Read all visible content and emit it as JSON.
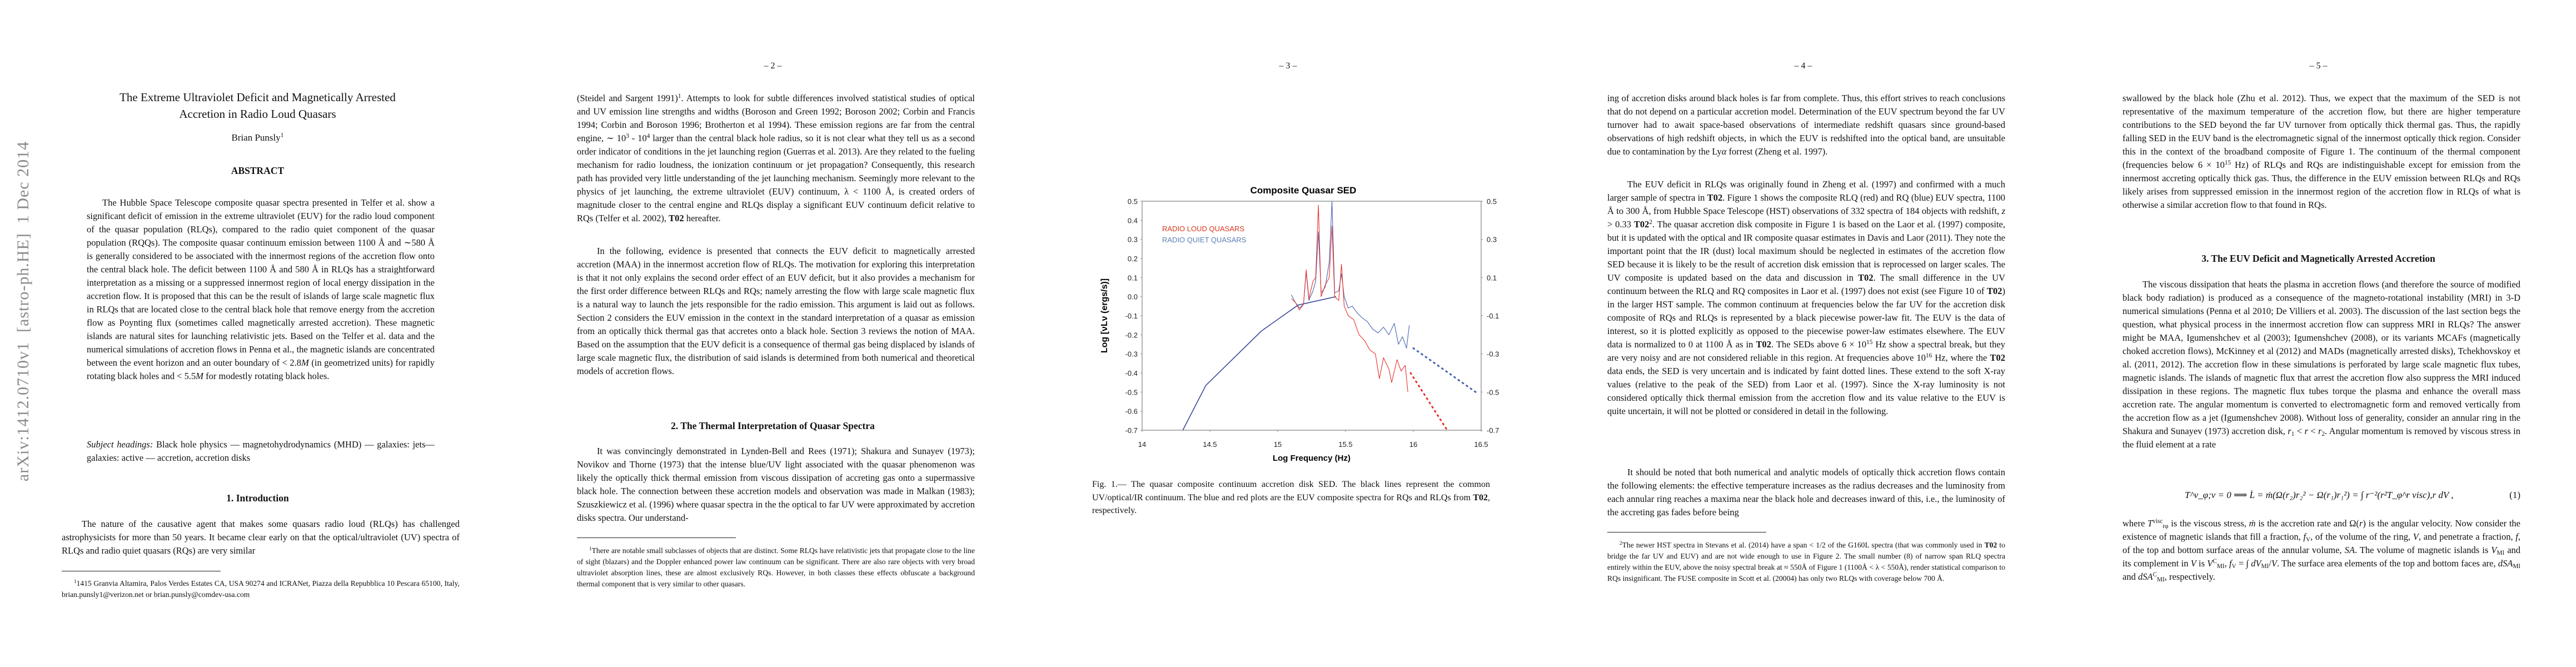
{
  "arxiv_stamp": "arXiv:1412.0710v1  [astro-ph.HE]  1 Dec 2014",
  "pages": [
    {
      "title_line1": "The Extreme Ultraviolet Deficit and Magnetically Arrested",
      "title_line2": "Accretion in Radio Loud Quasars",
      "author": [
        "Brian Punsly",
        {
          "sup": "1"
        }
      ],
      "abstract_heading": "ABSTRACT",
      "abstract": [
        "The Hubble Space Telescope composite quasar spectra presented in Telfer et al. show a significant deficit of emission in the extreme ultraviolet (EUV) for the radio loud component of the quasar population (RLQs), compared to the radio quiet component of the quasar population (RQQs). The composite quasar continuum emission between 1100 Å and ∼580 Å is generally considered to be associated with the innermost regions of the accretion flow onto the central black hole. The deficit between 1100 Å and 580 Å in RLQs has a straightforward interpretation as a missing or a suppressed innermost region of local energy dissipation in the accretion flow. It is proposed that this can be the result of islands of large scale magnetic flux in RLQs that are located close to the central black hole that remove energy from the accretion flow as Poynting flux (sometimes called magnetically arrested accretion). These magnetic islands are natural sites for launching relativistic jets. Based on the Telfer et al. data and the numerical simulations of accretion flows in Penna et al., the magnetic islands are concentrated between the event horizon and an outer boundary of < 2.8",
        {
          "i": "M"
        },
        " (in geometrized units) for rapidly rotating black holes and < 5.5",
        {
          "i": "M"
        },
        " for modestly rotating black holes."
      ],
      "subject_headings": [
        {
          "i": "Subject headings:"
        },
        " Black hole physics — magnetohydrodynamics (MHD) — galaxies: jets—galaxies: active — accretion, accretion disks"
      ],
      "section_heading": "1.   Introduction",
      "intro": [
        "The nature of the causative agent that makes some quasars radio loud (RLQs) has challenged astrophysicists for more than 50 years. It became clear early on that the optical/ultraviolet (UV) spectra of RLQs and radio quiet quasars (RQs) are very similar"
      ],
      "footnote": [
        {
          "sup": "1"
        },
        "1415 Granvia Altamira, Palos Verdes Estates CA, USA 90274 and ICRANet, Piazza della Repubblica 10 Pescara 65100, Italy, brian.punsly1@verizon.net or brian.punsly@comdev-usa.com"
      ]
    },
    {
      "page_number": "– 2 –",
      "para1": [
        "(Steidel and Sargent 1991)",
        {
          "sup": "1"
        },
        ". Attempts to look for subtle differences involved statistical studies of optical and UV emission line strengths and widths (Boroson and Green 1992; Boroson 2002; Corbin and Francis 1994; Corbin and Boroson 1996; Brotherton et al 1994). These emission regions are far from the central engine, ∼ 10",
        {
          "sup": "3"
        },
        " - 10",
        {
          "sup": "4"
        },
        " larger than the central black hole radius, so it is not clear what they tell us as a second order indicator of conditions in the jet launching region (Guerras et al. 2013). Are they related to the fueling mechanism for radio loudness, the ionization continuum or jet propagation? Consequently, this research path has provided very little understanding of the jet launching mechanism. Seemingly more relevant to the physics of jet launching, the extreme ultraviolet (EUV) continuum, λ < 1100 Å, is created orders of magnitude closer to the central engine and RLQs display a significant EUV continuum deficit relative to RQs (Telfer et al. 2002), ",
        {
          "b": "T02"
        },
        " hereafter."
      ],
      "para2": [
        "In the following, evidence is presented that connects the EUV deficit to magnetically arrested accretion (MAA) in the innermost accretion flow of RLQs. The motivation for exploring this interpretation is that it not only explains the second order effect of an EUV deficit, but it also provides a mechanism for the first order difference between RLQs and RQs; namely arresting the flow with large scale magnetic flux is a natural way to launch the jets responsible for the radio emission. This argument is laid out as follows. Section 2 considers the EUV emission in the context in the standard interpretation of a quasar as emission from an optically thick thermal gas that accretes onto a black hole. Section 3 reviews the notion of MAA. Based on the assumption that the EUV deficit is a consequence of thermal gas being displaced by islands of large scale magnetic flux, the distribution of said islands is determined from both numerical and theoretical models of accretion flows."
      ],
      "section_heading": "2.   The Thermal Interpretation of Quasar Spectra",
      "para3": [
        "It was convincingly demonstrated in Lynden-Bell and Rees (1971); Shakura and Sunayev (1973); Novikov and Thorne (1973) that the intense blue/UV light associated with the quasar phenomenon was likely the optically thick thermal emission from viscous dissipation of accreting gas onto a supermassive black hole. The connection between these accretion models and observation was made in Malkan (1983); Szuszkiewicz et al. (1996) where quasar spectra in the the optical to far UV were approximated by accretion disks spectra. Our understand-"
      ],
      "footnote": [
        {
          "sup": "1"
        },
        "There are notable small subclasses of objects that are distinct. Some RLQs have relativistic jets that propagate close to the line of sight (blazars) and the Doppler enhanced power law continuum can be significant. There are also rare objects with very broad ultraviolet absorption lines, these are almost exclusively RQs. However, in both classes these effects obfuscate a background thermal component that is very similar to other quasars."
      ]
    },
    {
      "page_number": "– 3 –",
      "caption": [
        "Fig. 1.— The quasar composite continuum accretion disk SED. The black lines represent the common UV/optical/IR continuum. The blue and red plots are the EUV composite spectra for RQs and RLQs from ",
        {
          "b": "T02"
        },
        ", respectively."
      ]
    },
    {
      "page_number": "– 4 –",
      "para1": [
        "ing of accretion disks around black holes is far from complete. Thus, this effort strives to reach conclusions that do not depend on a particular accretion model. Determination of the EUV spectrum beyond the far UV turnover had to await space-based observations of intermediate redshift quasars since ground-based observations of high redshift objects, in which the EUV is redshifted into the optical band, are unsuitable due to contamination by the Ly",
        {
          "i": "α"
        },
        " forrest (Zheng et al. 1997)."
      ],
      "para2": [
        "The EUV deficit in RLQs was originally found in Zheng et al. (1997) and confirmed with a much larger sample of spectra in ",
        {
          "b": "T02"
        },
        ". Figure 1 shows the composite RLQ (red) and RQ (blue) EUV spectra, 1100 Å to 300 Å, from Hubble Space Telescope (HST) observations of 332 spectra of 184 objects with redshift, ",
        {
          "i": "z"
        },
        " > 0.33 ",
        {
          "b": "T02"
        },
        {
          "sup": "2"
        },
        ". The quasar accretion disk composite in Figure 1 is based on the Laor et al. (1997) composite, but it is updated with the optical and IR composite quasar estimates in Davis and Laor (2011). They note the important point that the IR (dust) local maximum should be neglected in estimates of the accretion flow SED because it is likely to be the result of accretion disk emission that is reprocessed on larger scales. The UV composite is updated based on the data and discussion in ",
        {
          "b": "T02"
        },
        ". The small difference in the UV continuum between the RLQ and RQ composites in Laor et al. (1997) does not exist (see Figure 10 of ",
        {
          "b": "T02"
        },
        ") in the larger HST sample. The common continuum at frequencies below the far UV for the accretion disk composite of RQs and RLQs is represented by a black piecewise power-law fit. The EUV is the data of interest, so it is plotted explicitly as opposed to the piecewise power-law estimates elsewhere. The EUV data is normalized to 0 at 1100 Å as in ",
        {
          "b": "T02"
        },
        ". The SEDs above 6 × 10",
        {
          "sup": "15"
        },
        " Hz show a spectral break, but they are very noisy and are not considered reliable in this region. At frequencies above 10",
        {
          "sup": "16"
        },
        " Hz, where the ",
        {
          "b": "T02"
        },
        " data ends, the SED is very uncertain and is indicated by faint dotted lines. These extend to the soft X-ray values (relative to the peak of the SED) from Laor et al. (1997). Since the X-ray luminosity is not considered optically thick thermal emission from the accretion flow and its value relative to the EUV is quite uncertain, it will not be plotted or considered in detail in the following."
      ],
      "para3": [
        "It should be noted that both numerical and analytic models of optically thick accretion flows contain the following elements: the effective temperature increases as the radius decreases and the luminosity from each annular ring reaches a maxima near the black hole and decreases inward of this, i.e., the luminosity of the accreting gas fades before being"
      ],
      "footnote": [
        {
          "sup": "2"
        },
        "The newer HST spectra in Stevans et al. (2014) have a span < 1/2 of the G160L spectra (that was commonly used in ",
        {
          "b": "T02"
        },
        " to bridge the far UV and EUV) and are not wide enough to use in Figure 2. The small number (8) of narrow span RLQ spectra entirely within the EUV, above the noisy spectral break at ≈ 550Å of Figure 1 (1100Å < λ < 550Å), render statistical comparison to RQs insignificant. The FUSE composite in Scott et al. (20004) has only two RLQs with coverage below 700 Å."
      ]
    },
    {
      "page_number": "– 5 –",
      "para1": [
        "swallowed by the black hole (Zhu et al. 2012). Thus, we expect that the maximum of the SED is not representative of the maximum temperature of the accretion flow, but there are higher temperature contributions to the SED beyond the far UV turnover from optically thick thermal gas. Thus, the rapidly falling SED in the EUV band is the electromagnetic signal of the innermost optically thick region. Consider this in the context of the broadband composite of Figure 1. The continuum of the thermal component (frequencies below 6 × 10",
        {
          "sup": "15"
        },
        " Hz) of RLQs and RQs are indistinguishable except for emission from the innermost accreting optically thick gas. Thus, the difference in the EUV emission between RLQs and RQs likely arises from suppressed emission in the innermost region of the accretion flow in RLQs of what is otherwise a similar accretion flow to that found in RQs."
      ],
      "section_heading": "3.   The EUV Deficit and Magnetically Arrested Accretion",
      "para2": [
        "The viscous dissipation that heats the plasma in accretion flows (and therefore the source of modified black body radiation) is produced as a consequence of the magneto-rotational instability (MRI) in 3-D numerical simulations (Penna et al 2010; De Villiers et al. 2003). The discussion of the last section begs the question, what physical process in the innermost accretion flow can suppress MRI in RLQs? The answer might be MAA, Igumenshchev et al (2003); Igumenshchev (2008), or its variants MCAFs (magnetically choked accretion flows), McKinney et al (2012) and MADs (magnetically arrested disks), Tchekhovskoy et al. (2011, 2012). The accretion flow in these simulations is perforated by large scale magnetic flux tubes, magnetic islands. The islands of magnetic flux that arrest the accretion flow also suppress the MRI induced dissipation in these regions. The magnetic flux tubes torque the plasma and enhance the overall mass accretion rate. The angular momentum is converted to electromagnetic form and removed vertically from the accretion flow as a jet (Igumenshchev 2008). Without loss of generality, consider an annular ring in the Shakura and Sunayev (1973) accretion disk, ",
        {
          "i": "r"
        },
        {
          "sub": "1"
        },
        " < ",
        {
          "i": "r"
        },
        " < ",
        {
          "i": "r"
        },
        {
          "sub": "2"
        },
        ". Angular momentum is removed by viscous stress in the fluid element at a rate"
      ],
      "equation": "T^ν_φ;ν = 0  ⟹  L̇ = ṁ(Ω(r₂)r₂² − Ω(r₁)r₁²) = ∫ r⁻²(r²T_φ^r visc),r dV ,",
      "equation_number": "(1)",
      "para3": [
        "where ",
        {
          "i": "T"
        },
        {
          "sup": "visc"
        },
        {
          "sub": "rφ"
        },
        " is the viscous stress, ",
        {
          "i": "ṁ"
        },
        " is the accretion rate and Ω(",
        {
          "i": "r"
        },
        ") is the angular velocity. Now consider the existence of magnetic islands that fill a fraction, ",
        {
          "i": "f"
        },
        {
          "sub": "V"
        },
        ", of the volume of the ring, ",
        {
          "i": "V"
        },
        ", and penetrate a fraction, ",
        {
          "i": "f"
        },
        ", of the top and bottom surface areas of the annular volume, ",
        {
          "i": "SA"
        },
        ". The volume of magnetic islands is ",
        {
          "i": "V"
        },
        {
          "sub": "MI"
        },
        " and its complement in ",
        {
          "i": "V"
        },
        " is ",
        {
          "i": "V"
        },
        {
          "sup": "C"
        },
        {
          "sub": "MI"
        },
        ", ",
        {
          "i": "f"
        },
        {
          "sub": "V"
        },
        " = ∫ ",
        {
          "i": "dV"
        },
        {
          "sub": "MI"
        },
        "/",
        {
          "i": "V"
        },
        ". The surface area elements of the top and bottom faces are, ",
        {
          "i": "dSA"
        },
        {
          "sub": "MI"
        },
        " and ",
        {
          "i": "dSA"
        },
        {
          "sup": "C"
        },
        {
          "sub": "MI"
        },
        ", respectively."
      ]
    }
  ],
  "chart_data": {
    "type": "line",
    "title": "Composite Quasar SED",
    "xlabel": "Log Frequency (Hz)",
    "ylabel": "Log [νLν (ergs/s)]",
    "xlim": [
      14,
      16.5
    ],
    "ylim": [
      -0.7,
      0.5
    ],
    "grid": false,
    "legend_placement": "top-left",
    "xticks": [
      "14",
      "14.5",
      "15",
      "15.5",
      "16",
      "16.5"
    ],
    "yticks_left": [
      "0.5",
      "0.4",
      "0.3",
      "0.2",
      "0.1",
      "0.0",
      "-0.1",
      "-0.2",
      "-0.3",
      "-0.4",
      "-0.5",
      "-0.6",
      "-0.7"
    ],
    "yticks_right": [
      "0.5",
      "0.3",
      "0.1",
      "-0.1",
      "-0.3",
      "-0.5",
      "-0.7"
    ],
    "colors": {
      "continuum": "#3b4a9a",
      "radio_quiet": "#4a63b0",
      "radio_loud": "#e8302a",
      "legend_loud": "#d9381e",
      "legend_quiet": "#5b7fb5",
      "axis": "#8a8a8a"
    },
    "series": [
      {
        "key": "continuum",
        "style": "solid",
        "x": [
          14.3,
          14.47,
          14.88,
          15.15,
          15.43
        ],
        "y": [
          -0.7,
          -0.465,
          -0.18,
          -0.044,
          0.0
        ]
      },
      {
        "key": "radio_quiet",
        "name": "RADIO QUIET QUASARS",
        "style": "solid",
        "x": [
          15.1,
          15.13,
          15.16,
          15.19,
          15.21,
          15.23,
          15.26,
          15.28,
          15.3,
          15.32,
          15.35,
          15.38,
          15.4,
          15.42,
          15.45,
          15.47,
          15.49,
          15.52,
          15.55,
          15.58,
          15.62,
          15.66,
          15.7,
          15.74,
          15.78,
          15.82,
          15.86,
          15.89,
          15.92,
          15.95,
          15.97
        ],
        "y": [
          0.01,
          -0.03,
          -0.06,
          -0.04,
          0.13,
          -0.02,
          0.03,
          0.08,
          0.34,
          0.02,
          0.05,
          0.18,
          0.5,
          0.02,
          0.03,
          0.12,
          0.0,
          -0.06,
          -0.05,
          -0.08,
          -0.11,
          -0.13,
          -0.17,
          -0.19,
          -0.16,
          -0.2,
          -0.14,
          -0.25,
          -0.21,
          -0.27,
          -0.15
        ]
      },
      {
        "key": "radio_loud",
        "name": "RADIO LOUD QUASARS",
        "style": "solid",
        "x": [
          15.1,
          15.13,
          15.16,
          15.19,
          15.21,
          15.23,
          15.26,
          15.28,
          15.3,
          15.32,
          15.35,
          15.38,
          15.4,
          15.42,
          15.45,
          15.47,
          15.49,
          15.52,
          15.56,
          15.6,
          15.64,
          15.68,
          15.72,
          15.75,
          15.78,
          15.82,
          15.84,
          15.88,
          15.91,
          15.94,
          15.96
        ],
        "y": [
          -0.01,
          -0.03,
          -0.07,
          -0.04,
          0.14,
          -0.01,
          0.08,
          0.1,
          0.48,
          0.0,
          0.06,
          0.1,
          0.37,
          0.0,
          -0.02,
          0.17,
          -0.05,
          -0.1,
          -0.12,
          -0.2,
          -0.23,
          -0.28,
          -0.3,
          -0.43,
          -0.32,
          -0.38,
          -0.45,
          -0.33,
          -0.39,
          -0.36,
          -0.5
        ]
      },
      {
        "key": "radio_quiet",
        "style": "dotted",
        "x": [
          16.0,
          16.48
        ],
        "y": [
          -0.27,
          -0.51
        ]
      },
      {
        "key": "radio_loud",
        "style": "dotted",
        "x": [
          15.98,
          16.25
        ],
        "y": [
          -0.4,
          -0.7
        ]
      }
    ]
  }
}
